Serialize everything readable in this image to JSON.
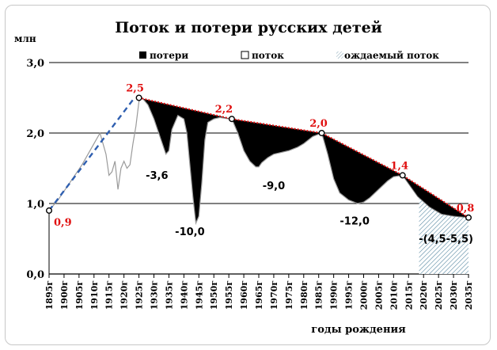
{
  "chart_data": {
    "type": "area",
    "title": "Поток и потери русских детей",
    "ylabel": "млн",
    "xlabel": "годы рождения",
    "ylim": [
      0,
      3.0
    ],
    "xlim": [
      1895,
      2035
    ],
    "yticks": [
      "0,0",
      "1,0",
      "2,0",
      "3,0"
    ],
    "yvalues": [
      0,
      1,
      2,
      3
    ],
    "xticks": [
      "1895г",
      "1900г",
      "1905г",
      "1910г",
      "1915г",
      "1920г",
      "1925г",
      "1930г",
      "1935г",
      "1940г",
      "1945г",
      "1950г",
      "1955г",
      "1960г",
      "1965г",
      "1970г",
      "1975г",
      "1980г",
      "1985г",
      "1990г",
      "1995г",
      "2000г",
      "2005г",
      "2010г",
      "2015г",
      "2020г",
      "2025г",
      "2030г",
      "2035г"
    ],
    "legend": [
      {
        "name": "потери",
        "swatch": "black"
      },
      {
        "name": "поток",
        "swatch": "white"
      },
      {
        "name": "ождаемый поток",
        "swatch": "hatched"
      }
    ],
    "legend_position": "top",
    "grid": "horizontal",
    "potential_series": {
      "x": [
        1895,
        1925,
        1956,
        1986,
        2013,
        2035
      ],
      "y": [
        0.9,
        2.5,
        2.2,
        2.0,
        1.4,
        0.8
      ],
      "labels": [
        "0,9",
        "2,5",
        "2,2",
        "2,0",
        "1,4",
        "0,8"
      ]
    },
    "early_trend": {
      "x": [
        1895,
        1923.5
      ],
      "y": [
        0.9,
        2.5
      ]
    },
    "actual_series": {
      "x": [
        1895,
        1898,
        1902,
        1906,
        1910,
        1912,
        1914,
        1915,
        1916,
        1917,
        1918,
        1919,
        1920,
        1921,
        1922,
        1923,
        1924,
        1925,
        1926,
        1928,
        1930,
        1932,
        1934,
        1935,
        1936,
        1938,
        1940,
        1941,
        1942,
        1943,
        1944,
        1945,
        1946,
        1947,
        1948,
        1950,
        1952,
        1955,
        1956,
        1958,
        1960,
        1962,
        1964,
        1965,
        1966,
        1968,
        1970,
        1972,
        1975,
        1978,
        1980,
        1983,
        1986,
        1988,
        1990,
        1992,
        1995,
        1998,
        2000,
        2002,
        2005,
        2008,
        2010,
        2013
      ],
      "y": [
        0.9,
        1.05,
        1.3,
        1.55,
        1.85,
        2.0,
        1.7,
        1.4,
        1.45,
        1.6,
        1.2,
        1.5,
        1.6,
        1.5,
        1.55,
        1.85,
        2.1,
        2.45,
        2.5,
        2.4,
        2.2,
        1.95,
        1.7,
        1.75,
        2.05,
        2.25,
        2.2,
        2.0,
        1.55,
        1.1,
        0.72,
        0.82,
        1.3,
        1.9,
        2.15,
        2.2,
        2.22,
        2.2,
        2.2,
        2.0,
        1.75,
        1.6,
        1.52,
        1.52,
        1.58,
        1.65,
        1.7,
        1.72,
        1.75,
        1.8,
        1.85,
        1.95,
        2.0,
        1.7,
        1.35,
        1.15,
        1.05,
        1.0,
        1.02,
        1.08,
        1.2,
        1.32,
        1.38,
        1.4
      ]
    },
    "expected_series": {
      "x": [
        2013,
        2018,
        2022,
        2026,
        2030,
        2035
      ],
      "y": [
        1.4,
        1.1,
        0.95,
        0.85,
        0.82,
        0.8
      ]
    },
    "loss_labels": [
      {
        "text": "-3,6",
        "x": 1931,
        "y": 1.35
      },
      {
        "text": "-10,0",
        "x": 1942,
        "y": 0.55
      },
      {
        "text": "-9,0",
        "x": 1970,
        "y": 1.2
      },
      {
        "text": "-12,0",
        "x": 1997,
        "y": 0.7
      },
      {
        "text": "-(4,5-5,5)",
        "x": 2027.5,
        "y": 0.45
      }
    ]
  }
}
